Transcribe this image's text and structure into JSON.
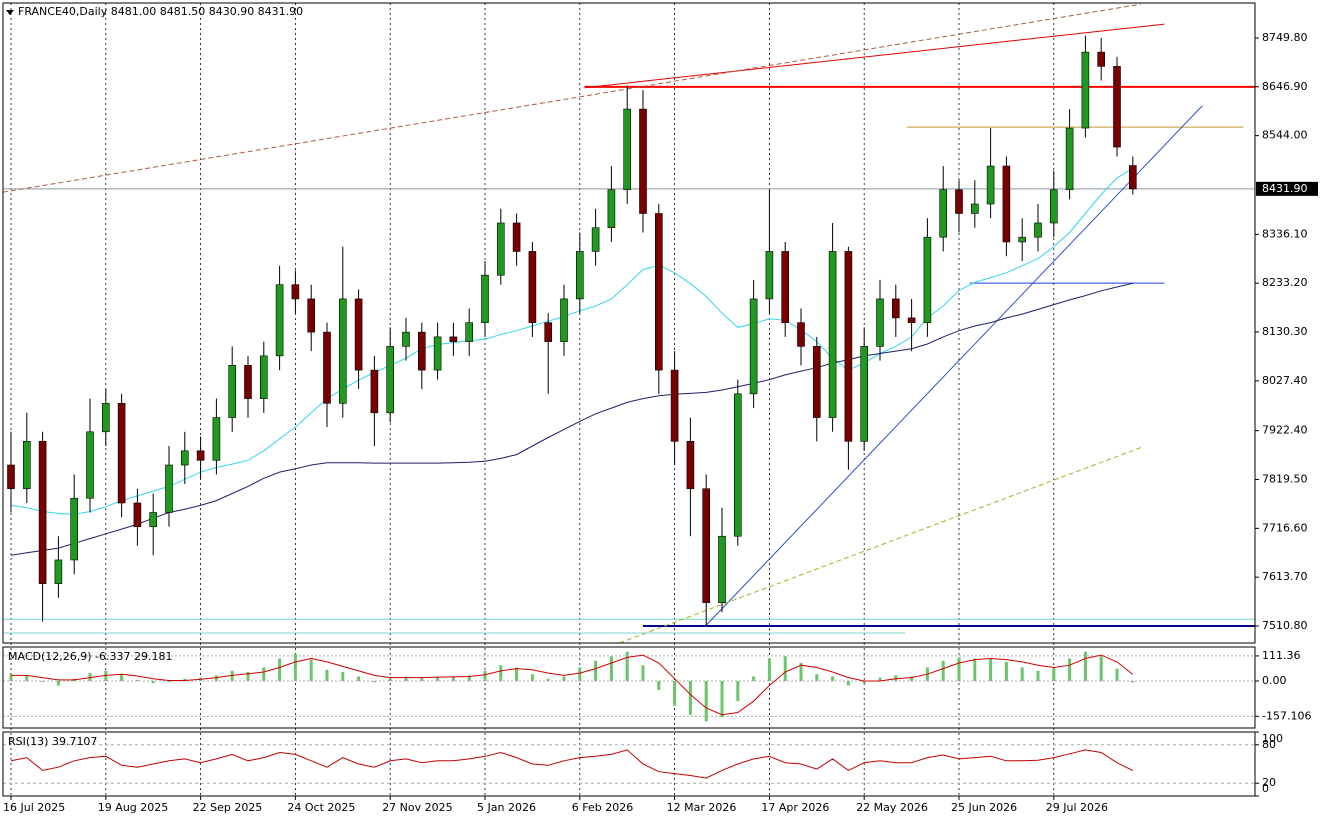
{
  "chart_data": [
    {
      "type": "candlestick",
      "title": "FRANCE40,Daily  8481.00 8481.50 8430.90 8431.90",
      "categories": [
        "16 Jul 2025",
        null,
        null,
        null,
        null,
        null,
        "19 Aug 2025",
        null,
        null,
        null,
        null,
        null,
        "22 Sep 2025",
        null,
        null,
        null,
        null,
        null,
        "24 Oct 2025",
        null,
        null,
        null,
        null,
        null,
        "27 Nov 2025",
        null,
        null,
        null,
        null,
        null,
        "5 Jan 2026",
        null,
        null,
        null,
        null,
        null,
        "6 Feb 2026",
        null,
        null,
        null,
        null,
        null,
        "12 Mar 2026",
        null,
        null,
        null,
        null,
        null,
        "17 Apr 2026",
        null,
        null,
        null,
        null,
        null,
        "22 May 2026",
        null,
        null,
        null,
        null,
        null,
        "25 Jun 2026",
        null,
        null,
        null,
        null,
        null,
        "29 Jul 2026",
        null,
        null,
        null,
        null,
        null
      ],
      "open": [
        7850,
        7800,
        7900,
        7600,
        7650,
        7780,
        7920,
        7980,
        7770,
        7720,
        7750,
        7850,
        7880,
        7860,
        7950,
        8060,
        7990,
        8080,
        8230,
        8200,
        8130,
        7980,
        8200,
        8050,
        7960,
        8100,
        8130,
        8050,
        8120,
        8110,
        8150,
        8250,
        8360,
        8300,
        8150,
        8110,
        8200,
        8300,
        8350,
        8430,
        8600,
        8380,
        8050,
        7900,
        7800,
        7560,
        7700,
        8000,
        8200,
        8300,
        8150,
        8100,
        7950,
        8300,
        7900,
        8100,
        8200,
        8160,
        8150,
        8330,
        8430,
        8380,
        8400,
        8480,
        8320,
        8330,
        8360,
        8430,
        8560,
        8720,
        8690,
        8481
      ],
      "high": [
        7920,
        7960,
        7920,
        7700,
        7830,
        7990,
        8010,
        8000,
        7800,
        7790,
        7890,
        7920,
        7910,
        7990,
        8100,
        8080,
        8110,
        8270,
        8260,
        8230,
        8150,
        8310,
        8220,
        8080,
        8140,
        8160,
        8150,
        8150,
        8150,
        8180,
        8280,
        8390,
        8380,
        8320,
        8170,
        8230,
        8340,
        8390,
        8480,
        8650,
        8640,
        8400,
        8090,
        7950,
        7830,
        7760,
        8030,
        8240,
        8430,
        8320,
        8180,
        8120,
        8360,
        8310,
        8140,
        8240,
        8230,
        8200,
        8370,
        8480,
        8450,
        8450,
        8560,
        8500,
        8370,
        8400,
        8470,
        8600,
        8755,
        8750,
        8710,
        8500
      ],
      "low": [
        7750,
        7770,
        7520,
        7570,
        7620,
        7750,
        7890,
        7740,
        7680,
        7660,
        7720,
        7810,
        7820,
        7830,
        7920,
        7950,
        7960,
        8050,
        8170,
        8090,
        7930,
        7950,
        8010,
        7890,
        7940,
        8070,
        8010,
        8030,
        8080,
        8080,
        8120,
        8230,
        8270,
        8120,
        8000,
        8080,
        8170,
        8270,
        8320,
        8400,
        8340,
        8000,
        7850,
        7700,
        7510,
        7540,
        7680,
        7970,
        8170,
        8120,
        8060,
        7900,
        7920,
        7840,
        7880,
        8070,
        8120,
        8090,
        8120,
        8300,
        8340,
        8350,
        8370,
        8290,
        8280,
        8300,
        8330,
        8410,
        8540,
        8660,
        8500,
        8420
      ],
      "close": [
        7800,
        7900,
        7600,
        7650,
        7780,
        7920,
        7980,
        7770,
        7720,
        7750,
        7850,
        7880,
        7860,
        7950,
        8060,
        7990,
        8080,
        8230,
        8200,
        8130,
        7980,
        8200,
        8050,
        7960,
        8100,
        8130,
        8050,
        8120,
        8110,
        8150,
        8250,
        8360,
        8300,
        8150,
        8110,
        8200,
        8300,
        8350,
        8430,
        8600,
        8380,
        8050,
        7900,
        7800,
        7560,
        7700,
        8000,
        8200,
        8300,
        8150,
        8100,
        7950,
        8300,
        7900,
        8100,
        8200,
        8160,
        8150,
        8330,
        8430,
        8380,
        8400,
        8480,
        8320,
        8330,
        8360,
        8430,
        8560,
        8720,
        8690,
        8520,
        8431.9
      ],
      "up_color": "#1f9a1f",
      "down_color": "#7a0000",
      "wick_color": "#000000",
      "overlays": [
        {
          "color": "#33d6f0",
          "values": [
            7765,
            7760,
            7752,
            7748,
            7746,
            7752,
            7762,
            7775,
            7785,
            7795,
            7805,
            7820,
            7835,
            7845,
            7852,
            7860,
            7880,
            7905,
            7930,
            7960,
            7990,
            8010,
            8029,
            8045,
            8060,
            8075,
            8095,
            8104,
            8108,
            8112,
            8115,
            8125,
            8133,
            8143,
            8153,
            8163,
            8175,
            8185,
            8200,
            8230,
            8262,
            8271,
            8255,
            8232,
            8205,
            8170,
            8140,
            8148,
            8158,
            8155,
            8135,
            8110,
            8075,
            8050,
            8065,
            8085,
            8100,
            8120,
            8160,
            8185,
            8218,
            8235,
            8245,
            8255,
            8270,
            8285,
            8310,
            8340,
            8380,
            8420,
            8455,
            8475
          ]
        },
        {
          "color": "#1b1f6b",
          "values": [
            7660,
            7665,
            7670,
            7675,
            7685,
            7695,
            7705,
            7715,
            7725,
            7738,
            7750,
            7757,
            7765,
            7775,
            7790,
            7805,
            7822,
            7835,
            7842,
            7850,
            7855,
            7855,
            7855,
            7854,
            7854,
            7854,
            7854,
            7854,
            7855,
            7856,
            7858,
            7864,
            7872,
            7890,
            7908,
            7925,
            7942,
            7958,
            7970,
            7982,
            7990,
            7996,
            7999,
            8001,
            8003,
            8008,
            8015,
            8022,
            8030,
            8040,
            8048,
            8055,
            8065,
            8072,
            8080,
            8085,
            8090,
            8095,
            8105,
            8120,
            8133,
            8143,
            8150,
            8160,
            8168,
            8178,
            8188,
            8198,
            8207,
            8217,
            8225,
            8233
          ]
        }
      ],
      "levels": [
        {
          "value": 8646.9,
          "color": "#ff0000",
          "from": 36.3,
          "to": 80,
          "width": 2
        },
        {
          "value": 8562,
          "color": "#c89632",
          "from": 56.7,
          "to": 78,
          "width": 1
        },
        {
          "value": 8233.2,
          "color": "#1a3cdc",
          "from": 60.7,
          "to": 73,
          "width": 1
        },
        {
          "value": 7510.8,
          "color": "#00008b",
          "from": 40,
          "to": 80,
          "width": 2
        },
        {
          "value": 7525,
          "color": "#7fd4d4",
          "from": -1,
          "to": 80,
          "width": 1
        },
        {
          "value": 7496,
          "color": "#7fd4d4",
          "from": -1,
          "to": 56.6,
          "width": 1
        }
      ],
      "trendlines": [
        {
          "points": [
            [
              36.3,
              8645
            ],
            [
              73,
              8779
            ]
          ],
          "color": "#e00000",
          "dash": false
        },
        {
          "points": [
            [
              -0.5,
              8425
            ],
            [
              71.5,
              8821
            ]
          ],
          "color": "#b05a3c",
          "dash": true
        },
        {
          "points": [
            [
              43.9,
              7509
            ],
            [
              75.4,
              8607
            ]
          ],
          "color": "#3050c8",
          "dash": false
        },
        {
          "points": [
            [
              38.5,
              7475
            ],
            [
              71.6,
              7888
            ]
          ],
          "color": "#9ab82a",
          "dash": true
        }
      ],
      "last_price": {
        "value": 8431.9,
        "label": "8431.90",
        "color": "#8a9aa8"
      },
      "vgrid": true,
      "ylim": [
        7475,
        8823.5
      ],
      "yticks": [
        {
          "value": 8749.8,
          "label": "8749.80"
        },
        {
          "value": 8646.9,
          "label": "8646.90"
        },
        {
          "value": 8544,
          "label": "8544.00"
        },
        {
          "value": 8336.1,
          "label": "8336.10"
        },
        {
          "value": 8233.2,
          "label": "8233.20"
        },
        {
          "value": 8130.3,
          "label": "8130.30"
        },
        {
          "value": 8027.4,
          "label": "8027.40"
        },
        {
          "value": 7922.4,
          "label": "7922.40"
        },
        {
          "value": 7819.5,
          "label": "7819.50"
        },
        {
          "value": 7716.6,
          "label": "7716.60"
        },
        {
          "value": 7613.7,
          "label": "7613.70"
        },
        {
          "value": 7510.8,
          "label": "7510.80"
        }
      ]
    },
    {
      "type": "macd",
      "title": "MACD(12,26,9) -6.337 29.181",
      "histogram": {
        "color": "#6cc46c",
        "values": [
          30,
          25,
          -5,
          -20,
          10,
          35,
          45,
          30,
          5,
          -10,
          -5,
          10,
          15,
          25,
          45,
          40,
          60,
          100,
          120,
          95,
          50,
          40,
          20,
          -5,
          10,
          20,
          15,
          20,
          20,
          25,
          45,
          70,
          60,
          30,
          10,
          20,
          60,
          90,
          110,
          130,
          70,
          -40,
          -110,
          -150,
          -180,
          -160,
          -90,
          20,
          100,
          110,
          80,
          30,
          20,
          -20,
          -10,
          15,
          25,
          20,
          60,
          90,
          105,
          100,
          100,
          85,
          60,
          45,
          55,
          100,
          130,
          110,
          55,
          -6.337
        ]
      },
      "signal": {
        "color": "#d00000",
        "values": [
          25,
          25,
          15,
          5,
          5,
          15,
          25,
          30,
          22,
          10,
          2,
          2,
          8,
          15,
          25,
          32,
          40,
          60,
          85,
          100,
          85,
          65,
          45,
          25,
          15,
          15,
          15,
          17,
          18,
          20,
          28,
          45,
          55,
          50,
          35,
          25,
          35,
          55,
          80,
          105,
          115,
          80,
          10,
          -60,
          -120,
          -150,
          -140,
          -90,
          -20,
          40,
          70,
          60,
          40,
          15,
          0,
          0,
          10,
          15,
          30,
          55,
          80,
          95,
          100,
          95,
          85,
          70,
          60,
          70,
          100,
          115,
          85,
          29.181
        ]
      },
      "ylim": [
        -209,
        151
      ],
      "yticks": [
        111.36,
        {
          "value": 0,
          "label": "0.00"
        },
        -157.106
      ]
    },
    {
      "type": "rsi",
      "title": "RSI(13) 39.7107",
      "color": "#c00000",
      "values": [
        55,
        60,
        40,
        45,
        55,
        60,
        62,
        48,
        45,
        50,
        55,
        58,
        52,
        58,
        65,
        55,
        60,
        68,
        65,
        55,
        45,
        60,
        50,
        45,
        55,
        58,
        52,
        55,
        55,
        58,
        62,
        68,
        60,
        50,
        48,
        55,
        60,
        62,
        65,
        72,
        50,
        38,
        35,
        32,
        28,
        40,
        50,
        58,
        62,
        52,
        50,
        42,
        58,
        40,
        52,
        55,
        52,
        52,
        60,
        64,
        58,
        60,
        62,
        55,
        55,
        56,
        60,
        66,
        72,
        68,
        52,
        39.7107
      ],
      "levels": [
        80,
        20
      ],
      "ylim": [
        0,
        100
      ],
      "yticks": [
        100,
        80,
        20,
        0
      ]
    }
  ]
}
